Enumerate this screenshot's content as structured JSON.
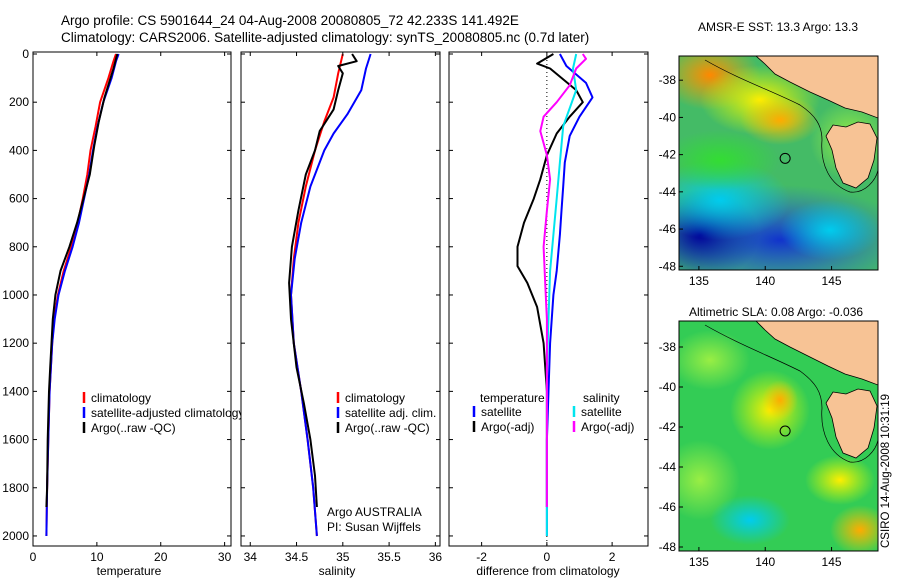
{
  "header": {
    "line1": "Argo profile: CS 5901644_24 04-Aug-2008 20080805_72 42.233S 141.492E",
    "line2": "Climatology: CARS2006. Satellite-adjusted climatology: synTS_20080805.nc (0.7d later)"
  },
  "footer_stamp": "CSIRO 14-Aug-2008 10:31:19",
  "colors": {
    "climatology": "#ff0000",
    "satellite": "#0000ff",
    "argo": "#000000",
    "sal_satellite": "#00e5ee",
    "sal_argo": "#ff00ff"
  },
  "chart_data": [
    {
      "type": "line",
      "xlabel": "temperature",
      "xlim": [
        0,
        31
      ],
      "xticks": [
        0,
        10,
        20,
        30
      ],
      "ylim": [
        2050,
        0
      ],
      "yticks": [
        0,
        200,
        400,
        600,
        800,
        1000,
        1200,
        1400,
        1600,
        1800,
        2000
      ],
      "legend": [
        "climatology",
        "satellite-adjusted climatology",
        "Argo(..raw -QC)"
      ],
      "series": [
        {
          "name": "climatology",
          "color": "#ff0000",
          "points": [
            [
              13.0,
              0
            ],
            [
              12.6,
              30
            ],
            [
              11.8,
              100
            ],
            [
              10.5,
              200
            ],
            [
              9.8,
              300
            ],
            [
              9.0,
              400
            ],
            [
              8.5,
              500
            ],
            [
              7.8,
              600
            ],
            [
              7.0,
              700
            ],
            [
              6.0,
              800
            ],
            [
              4.8,
              900
            ],
            [
              3.9,
              1000
            ],
            [
              3.3,
              1100
            ],
            [
              3.0,
              1200
            ],
            [
              2.8,
              1300
            ],
            [
              2.6,
              1400
            ],
            [
              2.4,
              1600
            ],
            [
              2.2,
              1800
            ],
            [
              2.1,
              2000
            ]
          ]
        },
        {
          "name": "satellite-adjusted climatology",
          "color": "#0000ff",
          "points": [
            [
              13.4,
              0
            ],
            [
              13.0,
              30
            ],
            [
              12.3,
              100
            ],
            [
              11.0,
              200
            ],
            [
              10.1,
              300
            ],
            [
              9.4,
              400
            ],
            [
              8.8,
              500
            ],
            [
              8.0,
              600
            ],
            [
              7.2,
              700
            ],
            [
              6.2,
              800
            ],
            [
              5.0,
              900
            ],
            [
              4.0,
              1000
            ],
            [
              3.4,
              1100
            ],
            [
              3.0,
              1200
            ],
            [
              2.8,
              1300
            ],
            [
              2.6,
              1400
            ],
            [
              2.4,
              1600
            ],
            [
              2.2,
              1800
            ],
            [
              2.1,
              2000
            ]
          ]
        },
        {
          "name": "Argo(..raw -QC)",
          "color": "#000000",
          "points": [
            [
              13.2,
              0
            ],
            [
              12.9,
              30
            ],
            [
              12.6,
              60
            ],
            [
              11.2,
              180
            ],
            [
              10.3,
              280
            ],
            [
              9.6,
              380
            ],
            [
              8.9,
              500
            ],
            [
              7.9,
              600
            ],
            [
              6.9,
              700
            ],
            [
              5.7,
              800
            ],
            [
              4.3,
              900
            ],
            [
              3.5,
              1000
            ],
            [
              3.1,
              1100
            ],
            [
              2.9,
              1200
            ],
            [
              2.7,
              1300
            ],
            [
              2.5,
              1400
            ],
            [
              2.3,
              1600
            ],
            [
              2.2,
              1800
            ],
            [
              2.1,
              1880
            ]
          ]
        }
      ]
    },
    {
      "type": "line",
      "xlabel": "salinity",
      "xlim": [
        33.9,
        36.05
      ],
      "xticks": [
        34,
        34.5,
        35,
        35.5,
        36
      ],
      "ylim": [
        2050,
        0
      ],
      "legend": [
        "climatology",
        "satellite adj. clim.",
        "Argo(..raw -QC)"
      ],
      "annotations": [
        "Argo AUSTRALIA",
        "PI: Susan Wijffels"
      ],
      "series": [
        {
          "name": "climatology",
          "color": "#ff0000",
          "points": [
            [
              35.0,
              0
            ],
            [
              34.95,
              80
            ],
            [
              34.9,
              180
            ],
            [
              34.8,
              280
            ],
            [
              34.7,
              400
            ],
            [
              34.6,
              550
            ],
            [
              34.52,
              700
            ],
            [
              34.47,
              850
            ],
            [
              34.44,
              1000
            ],
            [
              34.47,
              1200
            ],
            [
              34.55,
              1400
            ],
            [
              34.62,
              1600
            ],
            [
              34.68,
              1800
            ],
            [
              34.72,
              2000
            ]
          ]
        },
        {
          "name": "satellite adj. clim.",
          "color": "#0000ff",
          "points": [
            [
              35.3,
              0
            ],
            [
              35.25,
              60
            ],
            [
              35.2,
              150
            ],
            [
              35.05,
              250
            ],
            [
              34.9,
              330
            ],
            [
              34.8,
              400
            ],
            [
              34.65,
              550
            ],
            [
              34.55,
              700
            ],
            [
              34.48,
              850
            ],
            [
              34.44,
              1000
            ],
            [
              34.47,
              1200
            ],
            [
              34.55,
              1400
            ],
            [
              34.62,
              1600
            ],
            [
              34.68,
              1800
            ],
            [
              34.72,
              2000
            ]
          ]
        },
        {
          "name": "Argo(..raw -QC)",
          "color": "#000000",
          "points": [
            [
              35.1,
              0
            ],
            [
              35.15,
              30
            ],
            [
              34.95,
              50
            ],
            [
              35.0,
              80
            ],
            [
              34.95,
              150
            ],
            [
              34.9,
              230
            ],
            [
              34.8,
              290
            ],
            [
              34.75,
              320
            ],
            [
              34.7,
              400
            ],
            [
              34.6,
              500
            ],
            [
              34.52,
              650
            ],
            [
              34.45,
              800
            ],
            [
              34.42,
              950
            ],
            [
              34.44,
              1100
            ],
            [
              34.5,
              1300
            ],
            [
              34.58,
              1450
            ],
            [
              34.65,
              1600
            ],
            [
              34.7,
              1750
            ],
            [
              34.72,
              1880
            ]
          ]
        }
      ]
    },
    {
      "type": "line",
      "xlabel": "difference from climatology",
      "xlim": [
        -3,
        3.1
      ],
      "xticks": [
        -2,
        0,
        2
      ],
      "ylim": [
        2050,
        0
      ],
      "legend": {
        "temperature": [
          "satellite",
          "Argo(-adj)"
        ],
        "salinity": [
          "satellite",
          "Argo(-adj)"
        ]
      },
      "legend_titles": [
        "temperature",
        "salinity"
      ],
      "series": [
        {
          "name": "temperature satellite",
          "color": "#0000ff",
          "points": [
            [
              0.4,
              0
            ],
            [
              0.6,
              50
            ],
            [
              1.2,
              120
            ],
            [
              1.4,
              180
            ],
            [
              1.0,
              260
            ],
            [
              0.7,
              340
            ],
            [
              0.55,
              450
            ],
            [
              0.5,
              550
            ],
            [
              0.45,
              650
            ],
            [
              0.4,
              750
            ],
            [
              0.3,
              900
            ],
            [
              0.2,
              1000
            ],
            [
              0.1,
              1200
            ],
            [
              0.05,
              1400
            ],
            [
              0.0,
              1600
            ],
            [
              0.0,
              2000
            ]
          ]
        },
        {
          "name": "temperature Argo(-adj)",
          "color": "#000000",
          "points": [
            [
              0.2,
              0
            ],
            [
              -0.3,
              40
            ],
            [
              0.1,
              60
            ],
            [
              0.9,
              150
            ],
            [
              1.1,
              200
            ],
            [
              0.7,
              260
            ],
            [
              0.3,
              330
            ],
            [
              0.0,
              420
            ],
            [
              -0.2,
              520
            ],
            [
              -0.4,
              600
            ],
            [
              -0.7,
              700
            ],
            [
              -0.9,
              800
            ],
            [
              -0.9,
              880
            ],
            [
              -0.6,
              950
            ],
            [
              -0.3,
              1050
            ],
            [
              -0.1,
              1200
            ],
            [
              0.0,
              1400
            ],
            [
              0.0,
              1880
            ]
          ]
        },
        {
          "name": "salinity satellite",
          "color": "#00e5ee",
          "points": [
            [
              0.9,
              0
            ],
            [
              0.8,
              60
            ],
            [
              0.9,
              150
            ],
            [
              0.5,
              300
            ],
            [
              0.4,
              450
            ],
            [
              0.3,
              600
            ],
            [
              0.2,
              750
            ],
            [
              0.1,
              900
            ],
            [
              0.05,
              1100
            ],
            [
              0.0,
              1300
            ],
            [
              0.0,
              1600
            ],
            [
              0.0,
              2000
            ]
          ]
        },
        {
          "name": "salinity Argo(-adj)",
          "color": "#ff00ff",
          "points": [
            [
              1.1,
              0
            ],
            [
              1.2,
              20
            ],
            [
              0.9,
              60
            ],
            [
              0.7,
              130
            ],
            [
              0.3,
              200
            ],
            [
              -0.1,
              260
            ],
            [
              -0.2,
              320
            ],
            [
              0.0,
              420
            ],
            [
              0.1,
              520
            ],
            [
              0.0,
              650
            ],
            [
              -0.1,
              800
            ],
            [
              -0.05,
              950
            ],
            [
              0.0,
              1100
            ],
            [
              0.0,
              1400
            ],
            [
              0.0,
              1880
            ]
          ]
        }
      ]
    },
    {
      "type": "heatmap",
      "title": "AMSR-E SST: 13.3 Argo: 13.3",
      "xticks": [
        135,
        140,
        145
      ],
      "yticks": [
        -38,
        -40,
        -42,
        -44,
        -46,
        -48
      ],
      "marker": {
        "lon": 141.5,
        "lat": -42.2
      }
    },
    {
      "type": "heatmap",
      "title": "Altimetric SLA: 0.08 Argo: -0.036",
      "xticks": [
        135,
        140,
        145
      ],
      "yticks": [
        -38,
        -40,
        -42,
        -44,
        -46,
        -48
      ],
      "marker": {
        "lon": 141.5,
        "lat": -42.2
      }
    }
  ]
}
